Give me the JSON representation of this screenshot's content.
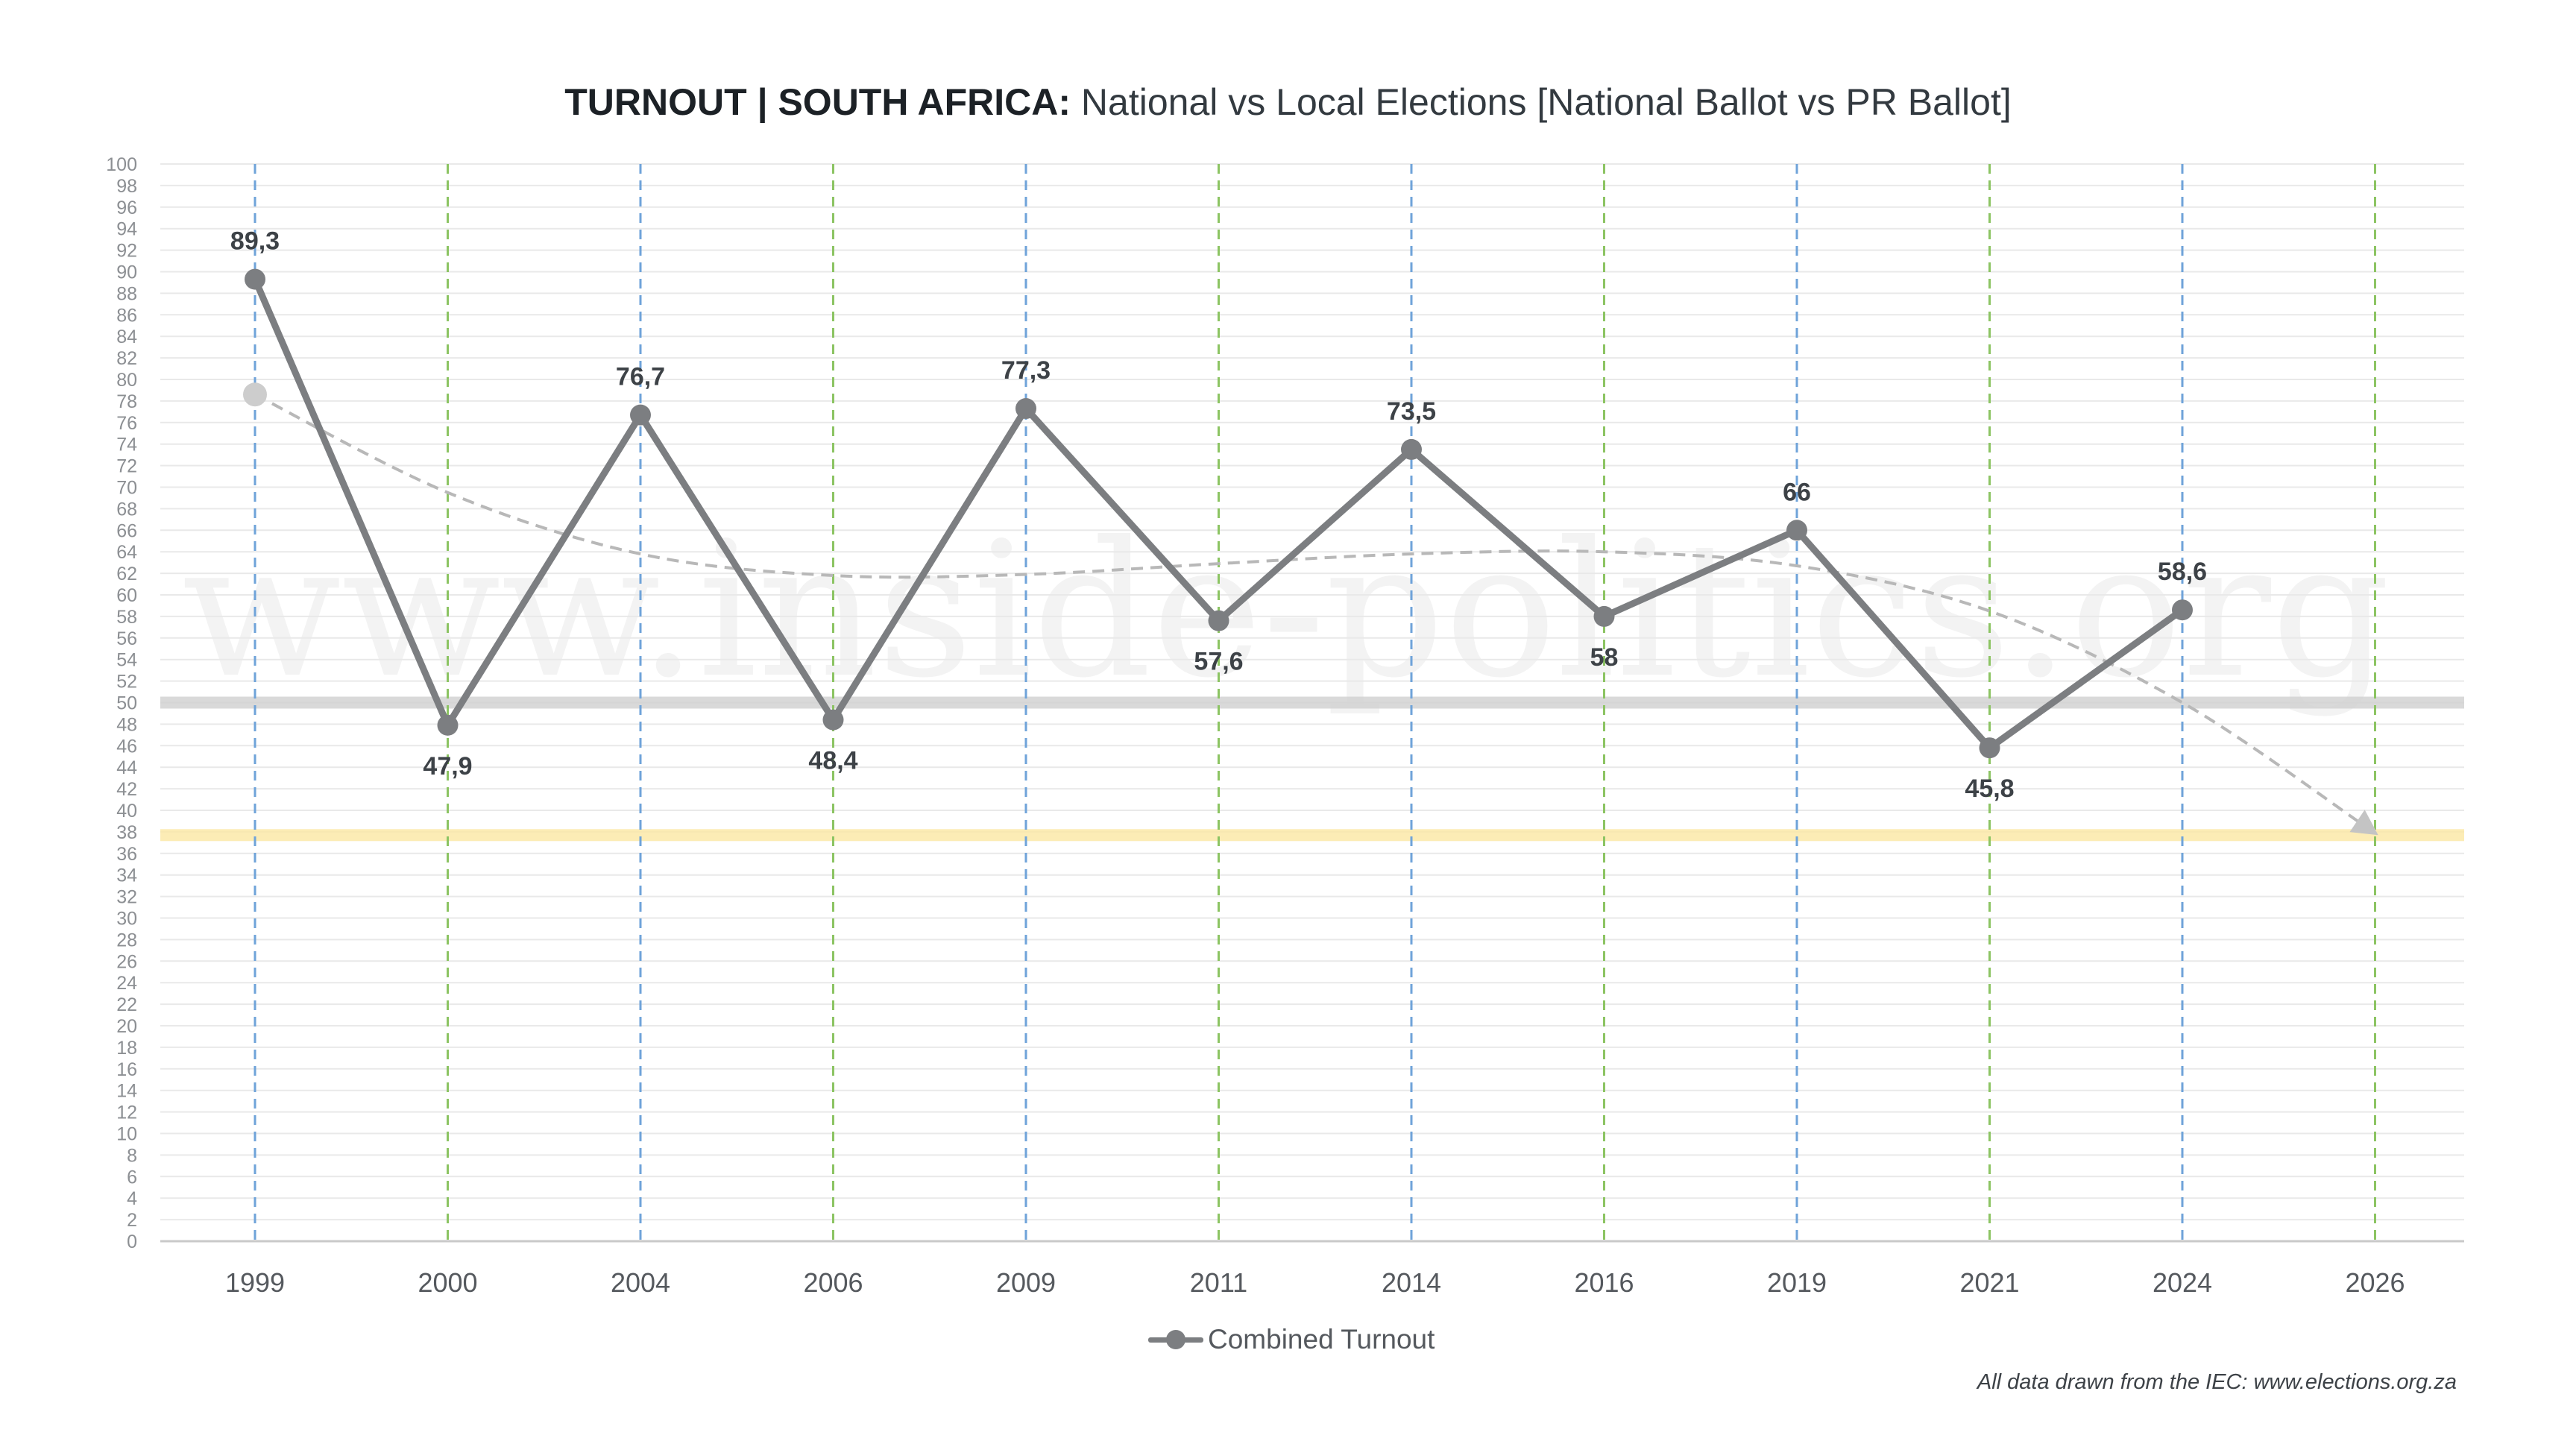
{
  "title_bold": "TURNOUT | SOUTH AFRICA:",
  "title_rest": " National vs Local Elections [National Ballot vs PR Ballot]",
  "watermark": "www.inside-politics.org",
  "legend_label": "Combined Turnout",
  "source_note": "All data drawn from the IEC: www.elections.org.za",
  "colors": {
    "series": "#7c7e81",
    "label": "#3d4247",
    "national_gridline": "#6fa3d9",
    "local_gridline": "#8cc463",
    "band_50": "#cfcfcf",
    "band_38": "#fbe7a3",
    "trend": "#b8b8b8"
  },
  "chart_data": {
    "type": "line",
    "title": "TURNOUT | SOUTH AFRICA: National vs Local Elections [National Ballot vs PR Ballot]",
    "xlabel": "",
    "ylabel": "",
    "ylim": [
      0,
      100
    ],
    "ytick_step": 2,
    "categories": [
      "1999",
      "2000",
      "2004",
      "2006",
      "2009",
      "2011",
      "2014",
      "2016",
      "2019",
      "2021",
      "2024",
      "2026"
    ],
    "category_type": [
      "national",
      "local",
      "national",
      "local",
      "national",
      "local",
      "national",
      "local",
      "national",
      "local",
      "national",
      "local"
    ],
    "series": [
      {
        "name": "Combined Turnout",
        "values": [
          89.3,
          47.9,
          76.7,
          48.4,
          77.3,
          57.6,
          73.5,
          58,
          66,
          45.8,
          58.6,
          null
        ],
        "labels": [
          "89,3",
          "47,9",
          "76,7",
          "48,4",
          "77,3",
          "57,6",
          "73,5",
          "58",
          "66",
          "45,8",
          "58,6",
          ""
        ],
        "label_pos": [
          "above",
          "below",
          "above",
          "below",
          "above",
          "below",
          "above",
          "below",
          "above",
          "below",
          "above",
          ""
        ]
      }
    ],
    "trendline": {
      "name": "trend",
      "style": "dashed-arrow",
      "values": [
        78.6,
        69.5,
        63.8,
        61.8,
        61.9,
        62.9,
        63.8,
        64.0,
        62.7,
        58.5,
        50.0,
        38.0
      ]
    },
    "reference_bands": [
      {
        "value": 50,
        "color": "band_50"
      },
      {
        "value": 37.7,
        "color": "band_38"
      }
    ],
    "grid": true,
    "legend": "bottom-center"
  }
}
